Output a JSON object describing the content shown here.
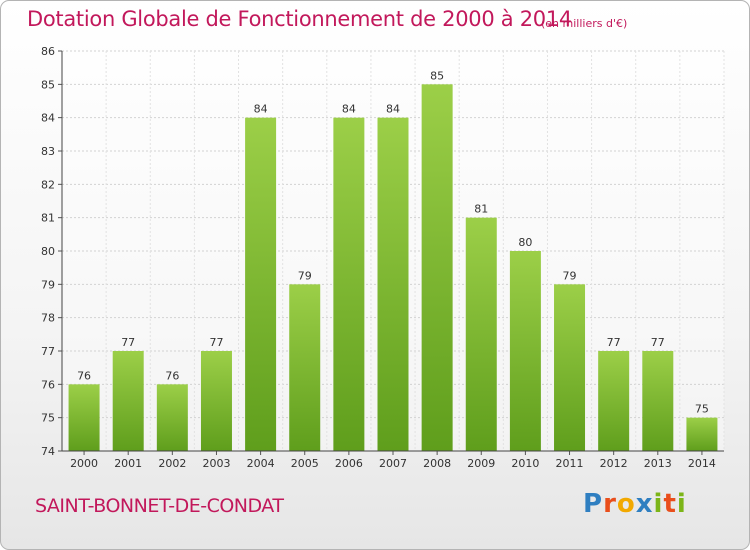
{
  "title": "Dotation Globale de Fonctionnement de 2000 à 2014",
  "subtitle": "(en milliers d'€)",
  "commune": "SAINT-BONNET-DE-CONDAT",
  "logo": {
    "text": "Proxiti",
    "letters": [
      {
        "ch": "P",
        "color": "#2f7fc1"
      },
      {
        "ch": "r",
        "color": "#e94e1b"
      },
      {
        "ch": "o",
        "color": "#f2a900"
      },
      {
        "ch": "x",
        "color": "#2f7fc1"
      },
      {
        "ch": "i",
        "color": "#7cb518"
      },
      {
        "ch": "t",
        "color": "#e94e1b"
      },
      {
        "ch": "i",
        "color": "#7cb518"
      }
    ]
  },
  "colors": {
    "title": "#c2185b",
    "bar_top": "#9ccf48",
    "bar_bottom": "#5f9e1c"
  },
  "chart_data": {
    "type": "bar",
    "categories": [
      "2000",
      "2001",
      "2002",
      "2003",
      "2004",
      "2005",
      "2006",
      "2007",
      "2008",
      "2009",
      "2010",
      "2011",
      "2012",
      "2013",
      "2014"
    ],
    "values": [
      76,
      77,
      76,
      77,
      84,
      79,
      84,
      84,
      85,
      81,
      80,
      79,
      77,
      77,
      75
    ],
    "ylim": [
      74,
      86
    ],
    "yticks": [
      74,
      75,
      76,
      77,
      78,
      79,
      80,
      81,
      82,
      83,
      84,
      85,
      86
    ],
    "grid": true,
    "title": "Dotation Globale de Fonctionnement de 2000 à 2014",
    "xlabel": "",
    "ylabel": ""
  }
}
